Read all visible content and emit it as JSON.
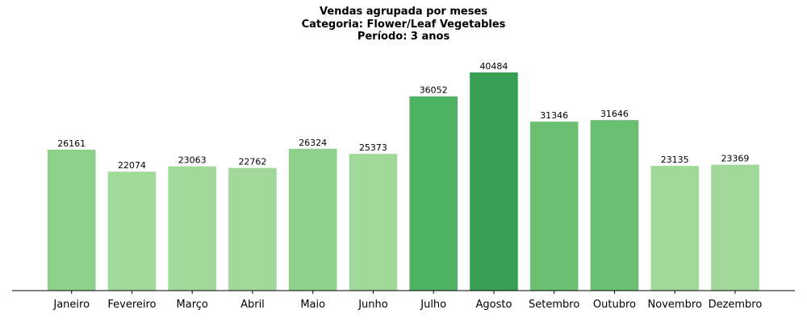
{
  "chart_data": {
    "type": "bar",
    "title_lines": [
      "Vendas agrupada por meses",
      "Categoria: Flower/Leaf Vegetables",
      "Período: 3 anos"
    ],
    "xlabel": "",
    "ylabel": "",
    "categories": [
      "Janeiro",
      "Fevereiro",
      "Março",
      "Abril",
      "Maio",
      "Junho",
      "Julho",
      "Agosto",
      "Setembro",
      "Outubro",
      "Novembro",
      "Dezembro"
    ],
    "values": [
      26161,
      22074,
      23063,
      22762,
      26324,
      25373,
      36052,
      40484,
      31346,
      31646,
      23135,
      23369
    ],
    "value_labels": [
      "26161",
      "22074",
      "23063",
      "22762",
      "26324",
      "25373",
      "36052",
      "40484",
      "31346",
      "31646",
      "23135",
      "23369"
    ],
    "ylim": [
      0,
      44000
    ],
    "y_axis_visible": false,
    "grid": false,
    "legend": "none",
    "color_scale": [
      "#a1d99b",
      "#8ed18a",
      "#6bbf71",
      "#4eb265",
      "#38a055"
    ]
  }
}
